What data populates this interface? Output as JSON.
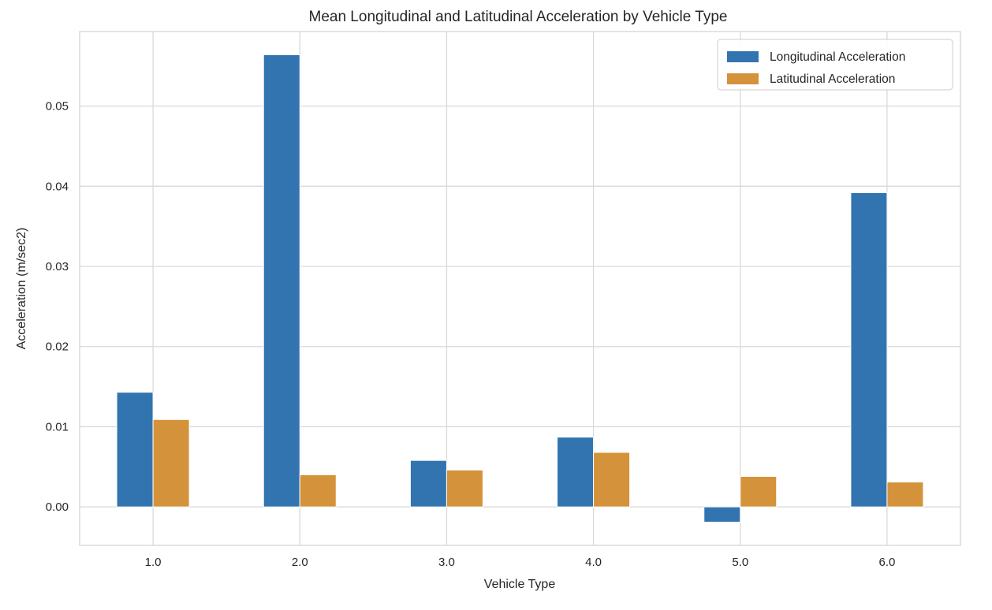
{
  "chart_data": {
    "type": "bar",
    "title": "Mean Longitudinal and Latitudinal Acceleration by Vehicle Type",
    "xlabel": "Vehicle Type",
    "ylabel": "Acceleration (m/sec2)",
    "categories": [
      "1.0",
      "2.0",
      "3.0",
      "4.0",
      "5.0",
      "6.0"
    ],
    "series": [
      {
        "name": "Longitudinal Acceleration",
        "color": "#3274b0",
        "values": [
          0.0143,
          0.0564,
          0.0058,
          0.0087,
          -0.0019,
          0.0392
        ]
      },
      {
        "name": "Latitudinal Acceleration",
        "color": "#d4923a",
        "values": [
          0.0109,
          0.004,
          0.0046,
          0.0068,
          0.0038,
          0.0031
        ]
      }
    ],
    "ylim": [
      -0.0048,
      0.0593
    ],
    "yticks": [
      0.0,
      0.01,
      0.02,
      0.03,
      0.04,
      0.05
    ],
    "ytick_labels": [
      "0.00",
      "0.01",
      "0.02",
      "0.03",
      "0.04",
      "0.05"
    ],
    "grid": true,
    "legend_position": "top-right"
  }
}
